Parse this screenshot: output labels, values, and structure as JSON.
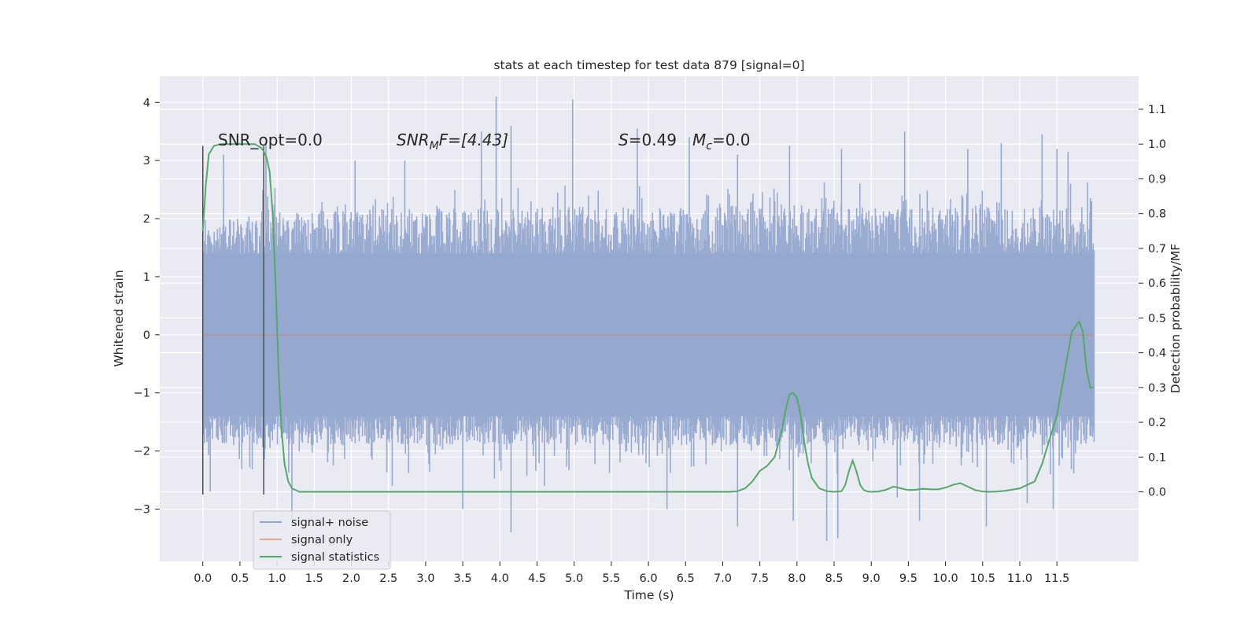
{
  "chart_data": {
    "type": "line",
    "title": "stats at each timestep for test data 879 [signal=0]",
    "xlabel": "Time (s)",
    "ylabel": "Whitened strain",
    "ylabel_right": "Detection probability/MF",
    "xlim": [
      -0.58,
      12.6
    ],
    "ylim": [
      -3.9,
      4.45
    ],
    "ylim_right": [
      -0.2,
      1.195
    ],
    "x_ticks": [
      "0.0",
      "0.5",
      "1.0",
      "1.5",
      "2.0",
      "2.5",
      "3.0",
      "3.5",
      "4.0",
      "4.5",
      "5.0",
      "5.5",
      "6.0",
      "6.5",
      "7.0",
      "7.5",
      "8.0",
      "8.5",
      "9.0",
      "9.5",
      "10.0",
      "10.5",
      "11.0",
      "11.5"
    ],
    "y_ticks": [
      "−3",
      "−2",
      "−1",
      "0",
      "1",
      "2",
      "3",
      "4"
    ],
    "y_ticks_right": [
      "0.0",
      "0.1",
      "0.2",
      "0.3",
      "0.4",
      "0.5",
      "0.6",
      "0.7",
      "0.8",
      "0.9",
      "1.0",
      "1.1"
    ],
    "grid": true,
    "legend_position": "lower-left",
    "annotations": {
      "snr_opt": "SNR_opt=0.0",
      "snr_mf_main": "SNR",
      "snr_mf_sub": "M",
      "snr_mf_rest": "F=[4.43]",
      "s_main": "S",
      "s_rest": "=0.49",
      "mc_main": "M",
      "mc_sub": "c",
      "mc_rest": "=0.0"
    },
    "window_markers": {
      "x": [
        0.0,
        0.82
      ],
      "y_range": [
        -2.75,
        3.25
      ]
    },
    "series": [
      {
        "name": "signal+ noise",
        "color": "#95a8cf",
        "axis": "left",
        "x_range": [
          0.0,
          12.0
        ],
        "envelope_upper": [
          [
            0.0,
            1.9
          ],
          [
            1.0,
            2.1
          ],
          [
            3.0,
            2.2
          ],
          [
            4.0,
            2.2
          ],
          [
            6.0,
            2.2
          ],
          [
            8.0,
            2.2
          ],
          [
            10.0,
            2.2
          ],
          [
            12.0,
            2.2
          ]
        ],
        "envelope_lower": [
          [
            0.0,
            -1.9
          ],
          [
            12.0,
            -1.9
          ]
        ],
        "peaks_up": [
          [
            0.28,
            3.1
          ],
          [
            0.85,
            3.3
          ],
          [
            2.05,
            3.0
          ],
          [
            2.72,
            3.0
          ],
          [
            3.75,
            3.5
          ],
          [
            3.95,
            4.1
          ],
          [
            4.15,
            3.6
          ],
          [
            4.98,
            4.05
          ],
          [
            5.85,
            3.55
          ],
          [
            6.55,
            3.4
          ],
          [
            7.2,
            3.1
          ],
          [
            7.9,
            3.25
          ],
          [
            8.6,
            3.2
          ],
          [
            9.45,
            3.5
          ],
          [
            10.3,
            3.2
          ],
          [
            10.75,
            3.3
          ],
          [
            11.3,
            3.45
          ],
          [
            11.5,
            3.2
          ],
          [
            11.65,
            3.15
          ],
          [
            11.95,
            2.35
          ]
        ],
        "peaks_down": [
          [
            0.1,
            -2.7
          ],
          [
            1.2,
            -3.2
          ],
          [
            2.55,
            -2.6
          ],
          [
            3.5,
            -3.0
          ],
          [
            4.15,
            -3.4
          ],
          [
            4.6,
            -2.6
          ],
          [
            6.25,
            -3.0
          ],
          [
            7.2,
            -3.3
          ],
          [
            7.95,
            -3.2
          ],
          [
            8.4,
            -3.55
          ],
          [
            8.55,
            -3.5
          ],
          [
            9.35,
            -2.8
          ],
          [
            9.65,
            -3.2
          ],
          [
            10.55,
            -3.3
          ],
          [
            11.1,
            -2.9
          ],
          [
            11.45,
            -3.0
          ]
        ]
      },
      {
        "name": "signal only",
        "color": "#dd8452",
        "axis": "left",
        "x": [
          0.0,
          12.0
        ],
        "y": [
          0.0,
          0.0
        ]
      },
      {
        "name": "signal statistics",
        "color": "#55a868",
        "axis": "right",
        "x": [
          0.0,
          0.04,
          0.08,
          0.15,
          0.25,
          0.4,
          0.55,
          0.7,
          0.78,
          0.82,
          0.86,
          0.9,
          0.94,
          0.98,
          1.02,
          1.06,
          1.1,
          1.15,
          1.2,
          1.3,
          2.0,
          3.0,
          4.0,
          5.0,
          6.0,
          6.5,
          7.0,
          7.1,
          7.2,
          7.3,
          7.4,
          7.5,
          7.6,
          7.7,
          7.8,
          7.85,
          7.9,
          7.95,
          8.0,
          8.05,
          8.1,
          8.15,
          8.2,
          8.3,
          8.4,
          8.5,
          8.6,
          8.65,
          8.7,
          8.75,
          8.8,
          8.85,
          8.9,
          8.95,
          9.0,
          9.1,
          9.2,
          9.3,
          9.4,
          9.5,
          9.6,
          9.7,
          9.8,
          9.9,
          10.0,
          10.1,
          10.2,
          10.3,
          10.4,
          10.5,
          10.6,
          10.7,
          10.8,
          11.0,
          11.2,
          11.3,
          11.4,
          11.5,
          11.6,
          11.7,
          11.8,
          11.85,
          11.9,
          11.95,
          12.0
        ],
        "y": [
          0.75,
          0.88,
          0.97,
          0.995,
          1.0,
          1.0,
          1.0,
          1.0,
          0.99,
          0.98,
          0.96,
          0.92,
          0.8,
          0.6,
          0.35,
          0.18,
          0.08,
          0.03,
          0.01,
          0.0,
          0.0,
          0.0,
          0.0,
          0.0,
          0.0,
          0.0,
          0.0,
          0.0,
          0.002,
          0.01,
          0.03,
          0.06,
          0.075,
          0.1,
          0.18,
          0.24,
          0.28,
          0.285,
          0.27,
          0.22,
          0.14,
          0.08,
          0.04,
          0.01,
          0.002,
          0.0,
          0.002,
          0.02,
          0.06,
          0.09,
          0.06,
          0.02,
          0.005,
          0.001,
          0.0,
          0.001,
          0.006,
          0.015,
          0.01,
          0.005,
          0.006,
          0.009,
          0.007,
          0.007,
          0.012,
          0.02,
          0.025,
          0.015,
          0.005,
          0.001,
          0.0,
          0.001,
          0.003,
          0.01,
          0.03,
          0.08,
          0.15,
          0.22,
          0.34,
          0.46,
          0.49,
          0.46,
          0.35,
          0.3,
          0.3
        ]
      }
    ]
  }
}
